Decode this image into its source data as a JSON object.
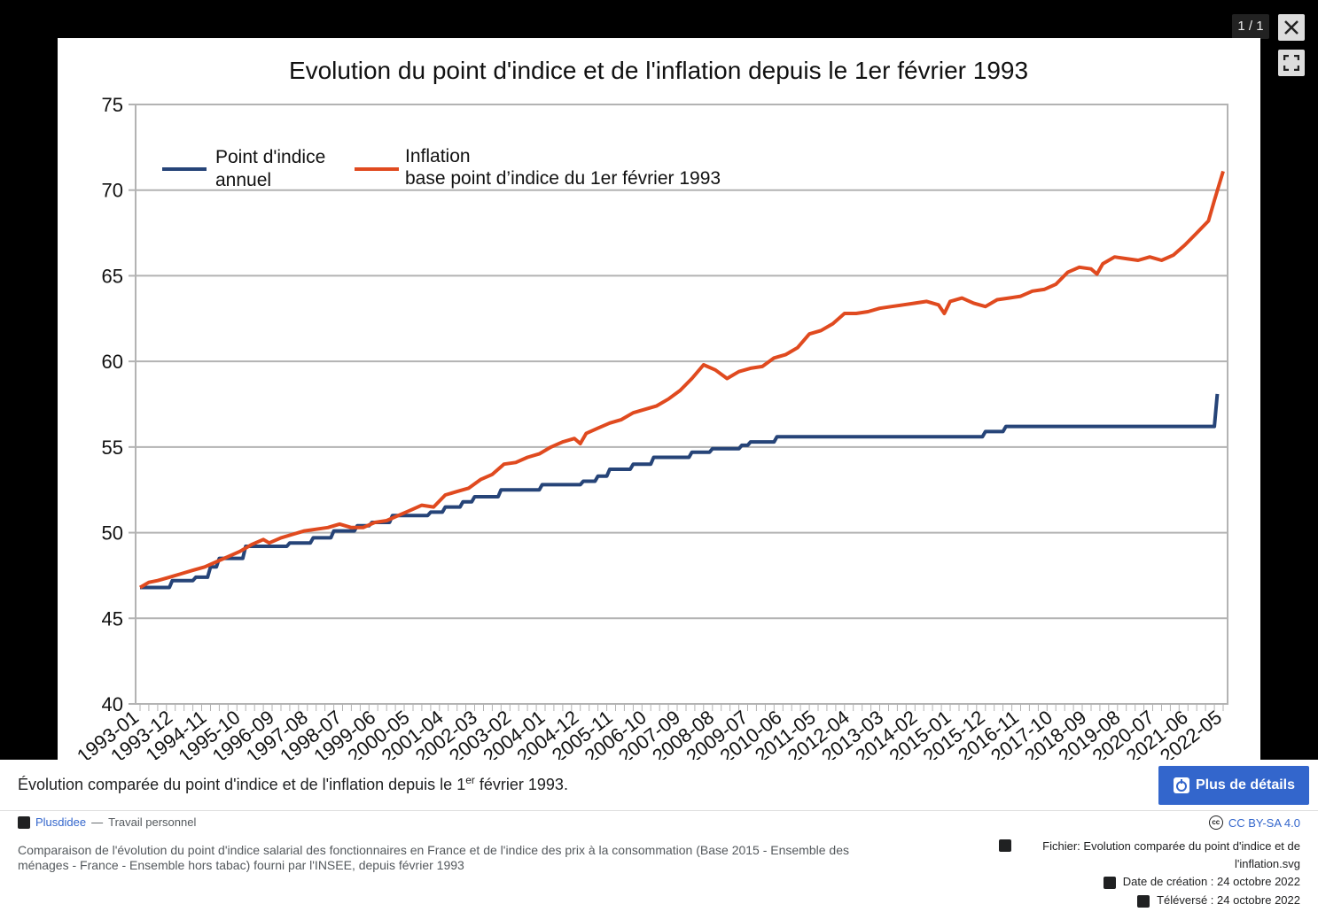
{
  "viewer": {
    "counter": "1 / 1"
  },
  "chart_data": {
    "type": "line",
    "title": "Evolution du point d'indice et de l'inflation depuis le 1er février 1993",
    "ylim": [
      40,
      75
    ],
    "y_ticks": [
      "40",
      "45",
      "50",
      "55",
      "60",
      "65",
      "70",
      "75"
    ],
    "x_tick_labels": [
      "1993-01",
      "1993-12",
      "1994-11",
      "1995-10",
      "1996-09",
      "1997-08",
      "1998-07",
      "1999-06",
      "2000-05",
      "2001-04",
      "2002-03",
      "2003-02",
      "2004-01",
      "2004-12",
      "2005-11",
      "2006-10",
      "2007-09",
      "2008-08",
      "2009-07",
      "2010-06",
      "2011-05",
      "2012-04",
      "2013-03",
      "2014-02",
      "2015-01",
      "2015-12",
      "2016-11",
      "2017-10",
      "2018-09",
      "2019-08",
      "2020-07",
      "2021-06",
      "2022-05"
    ],
    "legend": [
      {
        "line1": "Point d'indice",
        "line2": "annuel",
        "color": "#264478"
      },
      {
        "line1": "Inflation",
        "line2": "base point d’indice du 1er février 1993",
        "color": "#e04a1f"
      }
    ],
    "series": [
      {
        "name": "Point d'indice annuel",
        "color": "#264478",
        "points": [
          [
            0,
            46.8
          ],
          [
            10,
            46.8
          ],
          [
            11,
            47.2
          ],
          [
            18,
            47.2
          ],
          [
            19,
            47.4
          ],
          [
            23,
            47.4
          ],
          [
            24,
            48.0
          ],
          [
            26,
            48.0
          ],
          [
            27,
            48.5
          ],
          [
            35,
            48.5
          ],
          [
            36,
            49.2
          ],
          [
            50,
            49.2
          ],
          [
            51,
            49.4
          ],
          [
            58,
            49.4
          ],
          [
            59,
            49.7
          ],
          [
            65,
            49.7
          ],
          [
            66,
            50.1
          ],
          [
            73,
            50.1
          ],
          [
            74,
            50.4
          ],
          [
            78,
            50.4
          ],
          [
            79,
            50.6
          ],
          [
            85,
            50.6
          ],
          [
            86,
            51.0
          ],
          [
            98,
            51.0
          ],
          [
            99,
            51.2
          ],
          [
            103,
            51.2
          ],
          [
            104,
            51.5
          ],
          [
            109,
            51.5
          ],
          [
            110,
            51.8
          ],
          [
            113,
            51.8
          ],
          [
            114,
            52.1
          ],
          [
            122,
            52.1
          ],
          [
            123,
            52.5
          ],
          [
            136,
            52.5
          ],
          [
            137,
            52.8
          ],
          [
            150,
            52.8
          ],
          [
            151,
            53.0
          ],
          [
            155,
            53.0
          ],
          [
            156,
            53.3
          ],
          [
            159,
            53.3
          ],
          [
            160,
            53.7
          ],
          [
            167,
            53.7
          ],
          [
            168,
            54.0
          ],
          [
            174,
            54.0
          ],
          [
            175,
            54.4
          ],
          [
            187,
            54.4
          ],
          [
            188,
            54.7
          ],
          [
            194,
            54.7
          ],
          [
            195,
            54.9
          ],
          [
            204,
            54.9
          ],
          [
            205,
            55.1
          ],
          [
            207,
            55.1
          ],
          [
            208,
            55.3
          ],
          [
            216,
            55.3
          ],
          [
            217,
            55.6
          ],
          [
            287,
            55.6
          ],
          [
            288,
            55.9
          ],
          [
            294,
            55.9
          ],
          [
            295,
            56.2
          ],
          [
            366,
            56.2
          ],
          [
            367,
            58.1
          ]
        ]
      },
      {
        "name": "Inflation base point d’indice du 1er février 1993",
        "color": "#e04a1f",
        "points": [
          [
            0,
            46.8
          ],
          [
            3,
            47.1
          ],
          [
            6,
            47.2
          ],
          [
            10,
            47.4
          ],
          [
            14,
            47.6
          ],
          [
            18,
            47.8
          ],
          [
            22,
            48.0
          ],
          [
            26,
            48.3
          ],
          [
            30,
            48.6
          ],
          [
            34,
            48.9
          ],
          [
            38,
            49.3
          ],
          [
            42,
            49.6
          ],
          [
            44,
            49.4
          ],
          [
            48,
            49.7
          ],
          [
            52,
            49.9
          ],
          [
            56,
            50.1
          ],
          [
            60,
            50.2
          ],
          [
            64,
            50.3
          ],
          [
            68,
            50.5
          ],
          [
            72,
            50.3
          ],
          [
            76,
            50.3
          ],
          [
            80,
            50.6
          ],
          [
            84,
            50.7
          ],
          [
            88,
            51.0
          ],
          [
            92,
            51.3
          ],
          [
            96,
            51.6
          ],
          [
            100,
            51.5
          ],
          [
            104,
            52.2
          ],
          [
            108,
            52.4
          ],
          [
            112,
            52.6
          ],
          [
            116,
            53.1
          ],
          [
            120,
            53.4
          ],
          [
            124,
            54.0
          ],
          [
            128,
            54.1
          ],
          [
            132,
            54.4
          ],
          [
            136,
            54.6
          ],
          [
            140,
            55.0
          ],
          [
            144,
            55.3
          ],
          [
            148,
            55.5
          ],
          [
            150,
            55.2
          ],
          [
            152,
            55.8
          ],
          [
            156,
            56.1
          ],
          [
            160,
            56.4
          ],
          [
            164,
            56.6
          ],
          [
            168,
            57.0
          ],
          [
            172,
            57.2
          ],
          [
            176,
            57.4
          ],
          [
            180,
            57.8
          ],
          [
            184,
            58.3
          ],
          [
            188,
            59.0
          ],
          [
            192,
            59.8
          ],
          [
            196,
            59.5
          ],
          [
            200,
            59.0
          ],
          [
            204,
            59.4
          ],
          [
            208,
            59.6
          ],
          [
            212,
            59.7
          ],
          [
            216,
            60.2
          ],
          [
            220,
            60.4
          ],
          [
            224,
            60.8
          ],
          [
            228,
            61.6
          ],
          [
            232,
            61.8
          ],
          [
            236,
            62.2
          ],
          [
            240,
            62.8
          ],
          [
            244,
            62.8
          ],
          [
            248,
            62.9
          ],
          [
            252,
            63.1
          ],
          [
            256,
            63.2
          ],
          [
            260,
            63.3
          ],
          [
            264,
            63.4
          ],
          [
            268,
            63.5
          ],
          [
            272,
            63.3
          ],
          [
            274,
            62.8
          ],
          [
            276,
            63.5
          ],
          [
            280,
            63.7
          ],
          [
            284,
            63.4
          ],
          [
            288,
            63.2
          ],
          [
            292,
            63.6
          ],
          [
            296,
            63.7
          ],
          [
            300,
            63.8
          ],
          [
            304,
            64.1
          ],
          [
            308,
            64.2
          ],
          [
            312,
            64.5
          ],
          [
            316,
            65.2
          ],
          [
            320,
            65.5
          ],
          [
            324,
            65.4
          ],
          [
            326,
            65.1
          ],
          [
            328,
            65.7
          ],
          [
            332,
            66.1
          ],
          [
            336,
            66.0
          ],
          [
            340,
            65.9
          ],
          [
            344,
            66.1
          ],
          [
            348,
            65.9
          ],
          [
            352,
            66.2
          ],
          [
            356,
            66.8
          ],
          [
            360,
            67.5
          ],
          [
            364,
            68.2
          ],
          [
            366,
            69.4
          ],
          [
            369,
            71.1
          ]
        ]
      }
    ]
  },
  "caption": {
    "before": "Évolution comparée du point d'indice et de l'inflation depuis le 1",
    "sup": "er",
    "after": " février 1993."
  },
  "details_button": "Plus de détails",
  "author": {
    "name": "Plusdidee",
    "separator": "—",
    "work": "Travail personnel"
  },
  "description": "Comparaison de l'évolution du point d'indice salarial des fonctionnaires en France et de l'indice des prix à la consommation (Base 2015 - Ensemble des ménages - France - Ensemble hors tabac) fourni par l'INSEE, depuis février 1993",
  "license": "CC BY-SA 4.0",
  "file": {
    "label": "Fichier: Evolution comparée du point d'indice et de l'inflation.svg"
  },
  "created": "Date de création : 24 octobre 2022",
  "uploaded": "Téléversé : 24 octobre 2022"
}
